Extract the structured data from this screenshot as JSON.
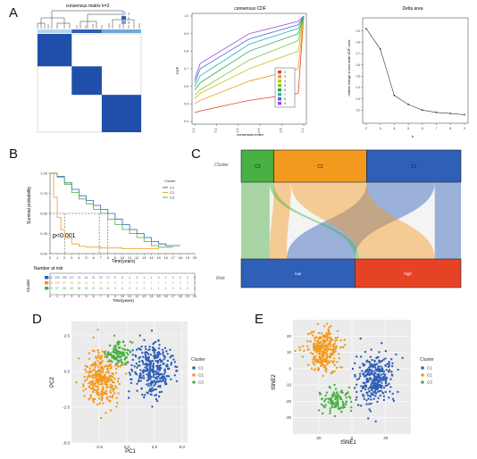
{
  "panel_labels": {
    "a": "A",
    "b": "B",
    "c": "C",
    "d": "D",
    "e": "E"
  },
  "colors": {
    "c1": "#2f5fb7",
    "c2": "#f39a1e",
    "c3": "#49b043",
    "heat": "#1f4fa8",
    "red": "#e64326",
    "grid": "#dddddd"
  },
  "heatmap": {
    "title": "consensus matrix k=3",
    "legend": [
      "1",
      "2",
      "3"
    ],
    "blocks": [
      {
        "from": 0.0,
        "to": 0.33,
        "cluster": "1"
      },
      {
        "from": 0.33,
        "to": 0.62,
        "cluster": "2"
      },
      {
        "from": 0.62,
        "to": 1.0,
        "cluster": "3"
      }
    ]
  },
  "cdf": {
    "chart_data": {
      "type": "line",
      "title": "consensus CDF",
      "xlabel": "consensus index",
      "ylabel": "CDF",
      "xlim": [
        0,
        1
      ],
      "ylim": [
        0.4,
        1.0
      ],
      "xticks": [
        "0.0",
        "0.2",
        "0.4",
        "0.6",
        "0.8",
        "1.0"
      ],
      "yticks": [
        "0.4",
        "0.5",
        "0.6",
        "0.7",
        "0.8",
        "0.9",
        "1.0"
      ],
      "series": [
        {
          "name": "2",
          "color": "#e64326",
          "values": [
            [
              0,
              0.45
            ],
            [
              0.05,
              0.46
            ],
            [
              0.5,
              0.52
            ],
            [
              0.95,
              0.56
            ],
            [
              1,
              1.0
            ]
          ]
        },
        {
          "name": "3",
          "color": "#f39a1e",
          "values": [
            [
              0,
              0.5
            ],
            [
              0.05,
              0.52
            ],
            [
              0.5,
              0.63
            ],
            [
              0.95,
              0.7
            ],
            [
              1,
              1.0
            ]
          ]
        },
        {
          "name": "4",
          "color": "#c8c217",
          "values": [
            [
              0,
              0.53
            ],
            [
              0.05,
              0.56
            ],
            [
              0.5,
              0.7
            ],
            [
              0.95,
              0.8
            ],
            [
              1,
              1.0
            ]
          ]
        },
        {
          "name": "5",
          "color": "#7dc23a",
          "values": [
            [
              0,
              0.55
            ],
            [
              0.05,
              0.58
            ],
            [
              0.5,
              0.75
            ],
            [
              0.95,
              0.86
            ],
            [
              1,
              1.0
            ]
          ]
        },
        {
          "name": "6",
          "color": "#2aa845",
          "values": [
            [
              0,
              0.58
            ],
            [
              0.05,
              0.62
            ],
            [
              0.5,
              0.8
            ],
            [
              0.95,
              0.9
            ],
            [
              1,
              1.0
            ]
          ]
        },
        {
          "name": "7",
          "color": "#27b5b0",
          "values": [
            [
              0,
              0.6
            ],
            [
              0.05,
              0.66
            ],
            [
              0.5,
              0.84
            ],
            [
              0.95,
              0.93
            ],
            [
              1,
              1.0
            ]
          ]
        },
        {
          "name": "8",
          "color": "#3b6fd6",
          "values": [
            [
              0,
              0.62
            ],
            [
              0.05,
              0.7
            ],
            [
              0.5,
              0.87
            ],
            [
              0.95,
              0.95
            ],
            [
              1,
              1.0
            ]
          ]
        },
        {
          "name": "9",
          "color": "#9b47d8",
          "values": [
            [
              0,
              0.64
            ],
            [
              0.05,
              0.73
            ],
            [
              0.5,
              0.9
            ],
            [
              0.95,
              0.97
            ],
            [
              1,
              1.0
            ]
          ]
        }
      ]
    }
  },
  "delta": {
    "chart_data": {
      "type": "line",
      "title": "Delta area",
      "xlabel": "k",
      "ylabel": "relative change in area under CDF curve",
      "x": [
        2,
        3,
        4,
        5,
        6,
        7,
        8,
        9
      ],
      "values": [
        0.92,
        0.74,
        0.33,
        0.25,
        0.2,
        0.18,
        0.17,
        0.16
      ],
      "xlim": [
        2,
        9
      ],
      "ylim": [
        0.1,
        1.0
      ],
      "yticks": [
        "0.2",
        "0.3",
        "0.4",
        "0.5",
        "0.6",
        "0.7",
        "0.8",
        "0.9"
      ]
    }
  },
  "km": {
    "chart_data": {
      "type": "line",
      "xlabel": "Time(years)",
      "ylabel": "Survival probability",
      "xlim": [
        0,
        20
      ],
      "ylim": [
        0,
        1
      ],
      "xticks": [
        "0",
        "1",
        "2",
        "3",
        "4",
        "5",
        "6",
        "7",
        "8",
        "9",
        "10",
        "11",
        "12",
        "13",
        "14",
        "15",
        "16",
        "17",
        "18",
        "19",
        "20"
      ],
      "yticks": [
        "0.00",
        "0.25",
        "0.50",
        "0.75",
        "1.00"
      ],
      "legend_title": "Cluster",
      "pvalue": "p<0.001",
      "series": [
        {
          "name": "C1",
          "color": "#2f5fb7",
          "values": [
            [
              0,
              1
            ],
            [
              1,
              0.96
            ],
            [
              2,
              0.88
            ],
            [
              3,
              0.8
            ],
            [
              4,
              0.72
            ],
            [
              5,
              0.66
            ],
            [
              6,
              0.6
            ],
            [
              7,
              0.55
            ],
            [
              8,
              0.5
            ],
            [
              9,
              0.43
            ],
            [
              10,
              0.36
            ],
            [
              11,
              0.3
            ],
            [
              12,
              0.25
            ],
            [
              13,
              0.2
            ],
            [
              14,
              0.15
            ],
            [
              15,
              0.12
            ],
            [
              16,
              0.1
            ],
            [
              17,
              0.1
            ],
            [
              18,
              0.1
            ]
          ]
        },
        {
          "name": "C2",
          "color": "#f39a1e",
          "values": [
            [
              0,
              1
            ],
            [
              0.5,
              0.7
            ],
            [
              1,
              0.45
            ],
            [
              1.5,
              0.3
            ],
            [
              2,
              0.2
            ],
            [
              3,
              0.12
            ],
            [
              4,
              0.09
            ],
            [
              5,
              0.08
            ],
            [
              7,
              0.07
            ],
            [
              10,
              0.06
            ],
            [
              15,
              0.05
            ]
          ]
        },
        {
          "name": "C3",
          "color": "#49b043",
          "values": [
            [
              0,
              1
            ],
            [
              1,
              0.95
            ],
            [
              2,
              0.86
            ],
            [
              3,
              0.76
            ],
            [
              4,
              0.68
            ],
            [
              5,
              0.62
            ],
            [
              6,
              0.55
            ],
            [
              7,
              0.5
            ],
            [
              8,
              0.43
            ],
            [
              9,
              0.36
            ],
            [
              10,
              0.3
            ],
            [
              11,
              0.25
            ],
            [
              12,
              0.2
            ],
            [
              13,
              0.15
            ],
            [
              14,
              0.1
            ],
            [
              15,
              0.08
            ],
            [
              17,
              0.08
            ]
          ]
        }
      ],
      "median_guides": [
        [
          2,
          0.5
        ],
        [
          6.8,
          0.5
        ],
        [
          8,
          0.5
        ]
      ]
    },
    "risk_table": {
      "title": "Number at risk",
      "row_axis_label": "Cluster",
      "xlabel": "Time(years)",
      "rows": [
        {
          "name": "C1",
          "color": "#2f5fb7",
          "values": [
            "332",
            "229",
            "199",
            "117",
            "74",
            "44",
            "31",
            "22",
            "17",
            "9",
            "6",
            "4",
            "3",
            "1",
            "1",
            "0",
            "0",
            "0",
            "0",
            "0",
            "0"
          ]
        },
        {
          "name": "C2",
          "color": "#f39a1e",
          "values": [
            "326",
            "135",
            "57",
            "30",
            "18",
            "11",
            "8",
            "6",
            "4",
            "3",
            "3",
            "3",
            "2",
            "2",
            "1",
            "1",
            "1",
            "0",
            "0",
            "0",
            "0"
          ]
        },
        {
          "name": "C3",
          "color": "#49b043",
          "values": [
            "115",
            "87",
            "68",
            "53",
            "38",
            "28",
            "22",
            "18",
            "14",
            "9",
            "6",
            "5",
            "3",
            "3",
            "1",
            "1",
            "0",
            "0",
            "0",
            "0",
            "0"
          ]
        }
      ]
    }
  },
  "sankey": {
    "left_labels": {
      "top": "Cluster",
      "bottom": "Risk"
    },
    "top_nodes": [
      {
        "name": "C3",
        "color": "#49b043",
        "weight": 115
      },
      {
        "name": "C2",
        "color": "#f39a1e",
        "weight": 326
      },
      {
        "name": "C1",
        "color": "#2f5fb7",
        "weight": 332
      }
    ],
    "bottom_nodes": [
      {
        "name": "low",
        "color": "#2f5fb7",
        "weight": 400
      },
      {
        "name": "high",
        "color": "#e64326",
        "weight": 373
      }
    ],
    "flows": [
      {
        "from": "C3",
        "to": "low",
        "value": 100,
        "color": "#49b043"
      },
      {
        "from": "C3",
        "to": "high",
        "value": 15,
        "color": "#49b043"
      },
      {
        "from": "C2",
        "to": "low",
        "value": 60,
        "color": "#f39a1e"
      },
      {
        "from": "C2",
        "to": "high",
        "value": 266,
        "color": "#f39a1e"
      },
      {
        "from": "C1",
        "to": "low",
        "value": 240,
        "color": "#2f5fb7"
      },
      {
        "from": "C1",
        "to": "high",
        "value": 92,
        "color": "#2f5fb7"
      }
    ]
  },
  "pca": {
    "chart_data": {
      "type": "scatter",
      "xlabel": "PC1",
      "ylabel": "PC2",
      "xlim": [
        -5,
        5.5
      ],
      "ylim": [
        -5,
        3.5
      ],
      "xticks": [
        "-2.5",
        "0.0",
        "2.5",
        "5.0"
      ],
      "xtick_values": [
        -2.5,
        0,
        2.5,
        5
      ],
      "yticks": [
        "2.5",
        "0.0",
        "-2.5",
        "-5.0"
      ],
      "ytick_values": [
        2.5,
        0,
        -2.5,
        -5
      ],
      "legend_title": "Cluster",
      "series": [
        {
          "name": "C1",
          "color": "#2f5fb7",
          "center": [
            2.3,
            0.1
          ],
          "spread": [
            1.45,
            1.6
          ],
          "n": 330
        },
        {
          "name": "C2",
          "color": "#f39a1e",
          "center": [
            -2.3,
            -0.5
          ],
          "spread": [
            1.25,
            1.55
          ],
          "n": 320
        },
        {
          "name": "C3",
          "color": "#49b043",
          "center": [
            -0.7,
            1.3
          ],
          "spread": [
            0.9,
            0.8
          ],
          "n": 115
        }
      ]
    }
  },
  "tsne": {
    "chart_data": {
      "type": "scatter",
      "xlabel": "tSNE1",
      "ylabel": "tSNE2",
      "xlim": [
        -35,
        35
      ],
      "ylim": [
        -40,
        30
      ],
      "xticks": [
        "-20",
        "0",
        "20"
      ],
      "xtick_values": [
        -20,
        0,
        20
      ],
      "yticks": [
        "20",
        "10",
        "0",
        "-10",
        "-20",
        "-30"
      ],
      "ytick_values": [
        20,
        10,
        0,
        -10,
        -20,
        -30
      ],
      "legend_title": "Cluster",
      "series": [
        {
          "name": "C1",
          "color": "#2f5fb7",
          "center": [
            14,
            -6
          ],
          "spread": [
            9,
            13
          ],
          "n": 320
        },
        {
          "name": "C2",
          "color": "#f39a1e",
          "center": [
            -17,
            11
          ],
          "spread": [
            8,
            11
          ],
          "n": 300
        },
        {
          "name": "C3",
          "color": "#49b043",
          "center": [
            -10,
            -20
          ],
          "spread": [
            8,
            7
          ],
          "n": 115
        }
      ]
    }
  }
}
